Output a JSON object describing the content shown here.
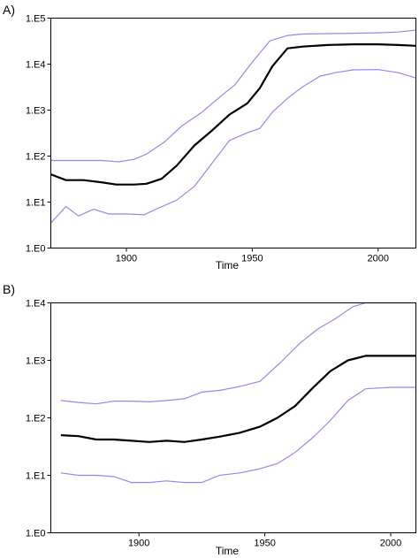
{
  "colors": {
    "median": "#000000",
    "bounds": "#8c8cf0"
  },
  "chart_data": [
    {
      "type": "line",
      "panel_label": "A)",
      "xlabel": "Time",
      "ylabel": "",
      "xlim": [
        1870,
        2015
      ],
      "ylim": [
        1,
        100000
      ],
      "yscale": "log",
      "x_ticks": [
        1900,
        1950,
        2000
      ],
      "x_tick_labels": [
        "1900",
        "1950",
        "2000"
      ],
      "y_ticks": [
        1,
        10,
        100,
        1000,
        10000,
        100000
      ],
      "y_tick_labels": [
        "1.E0",
        "1.E1",
        "1.E2",
        "1.E3",
        "1.E4",
        "1.E5"
      ],
      "grid": false,
      "series": [
        {
          "role": "upper",
          "x": [
            1870,
            1880,
            1890,
            1897,
            1903,
            1908,
            1915,
            1922,
            1930,
            1937,
            1943,
            1950,
            1957,
            1964,
            1970,
            1980,
            1990,
            2000,
            2008,
            2015
          ],
          "y": [
            80,
            80,
            80,
            75,
            85,
            110,
            200,
            450,
            900,
            1900,
            3500,
            11000,
            32000,
            42000,
            45000,
            46000,
            47000,
            48000,
            50000,
            55000
          ]
        },
        {
          "role": "median",
          "x": [
            1870,
            1876,
            1883,
            1890,
            1896,
            1903,
            1908,
            1914,
            1920,
            1927,
            1934,
            1941,
            1948,
            1953,
            1958,
            1964,
            1970,
            1980,
            1990,
            2000,
            2008,
            2015
          ],
          "y": [
            40,
            30,
            30,
            27,
            24,
            24,
            25,
            32,
            62,
            170,
            360,
            800,
            1400,
            3000,
            9000,
            22000,
            24000,
            26000,
            27000,
            27000,
            26000,
            25000
          ]
        },
        {
          "role": "lower",
          "x": [
            1870,
            1876,
            1881,
            1887,
            1893,
            1900,
            1907,
            1913,
            1920,
            1927,
            1934,
            1941,
            1948,
            1953,
            1958,
            1964,
            1970,
            1977,
            1983,
            1990,
            2000,
            2008,
            2015
          ],
          "y": [
            3.5,
            8,
            5,
            7,
            5.5,
            5.5,
            5.3,
            7.5,
            11,
            22,
            70,
            220,
            320,
            400,
            900,
            1800,
            3200,
            5500,
            6500,
            7500,
            7600,
            6500,
            5000
          ]
        }
      ]
    },
    {
      "type": "line",
      "panel_label": "B)",
      "xlabel": "Time",
      "ylabel": "",
      "xlim": [
        1865,
        2010
      ],
      "ylim": [
        1,
        10000
      ],
      "yscale": "log",
      "x_ticks": [
        1900,
        1950,
        2000
      ],
      "x_tick_labels": [
        "1900",
        "1950",
        "2000"
      ],
      "y_ticks": [
        1,
        10,
        100,
        1000,
        10000
      ],
      "y_tick_labels": [
        "1.E0",
        "1.E1",
        "1.E2",
        "1.E3",
        "1.E4"
      ],
      "grid": false,
      "series": [
        {
          "role": "upper",
          "x": [
            1869,
            1876,
            1883,
            1890,
            1897,
            1904,
            1911,
            1918,
            1925,
            1932,
            1940,
            1948,
            1956,
            1964,
            1971,
            1978,
            1985,
            1990,
            2000,
            2010
          ],
          "y": [
            200,
            185,
            175,
            195,
            195,
            190,
            200,
            215,
            280,
            300,
            350,
            430,
            900,
            2000,
            3500,
            5300,
            8600,
            10000,
            10000,
            10000
          ]
        },
        {
          "role": "median",
          "x": [
            1869,
            1876,
            1883,
            1890,
            1897,
            1904,
            1911,
            1918,
            1925,
            1932,
            1940,
            1948,
            1955,
            1962,
            1969,
            1976,
            1983,
            1990,
            2000,
            2010
          ],
          "y": [
            50,
            48,
            42,
            42,
            40,
            38,
            40,
            38,
            42,
            47,
            55,
            70,
            100,
            160,
            330,
            650,
            1000,
            1200,
            1200,
            1200
          ]
        },
        {
          "role": "lower",
          "x": [
            1869,
            1876,
            1883,
            1890,
            1897,
            1904,
            1911,
            1918,
            1925,
            1932,
            1940,
            1948,
            1955,
            1962,
            1969,
            1976,
            1983,
            1990,
            2000,
            2010
          ],
          "y": [
            11,
            10,
            10,
            9.5,
            7.5,
            7.5,
            8,
            7.5,
            7.5,
            10,
            11,
            13,
            16,
            25,
            45,
            90,
            200,
            320,
            340,
            340
          ]
        }
      ]
    }
  ]
}
